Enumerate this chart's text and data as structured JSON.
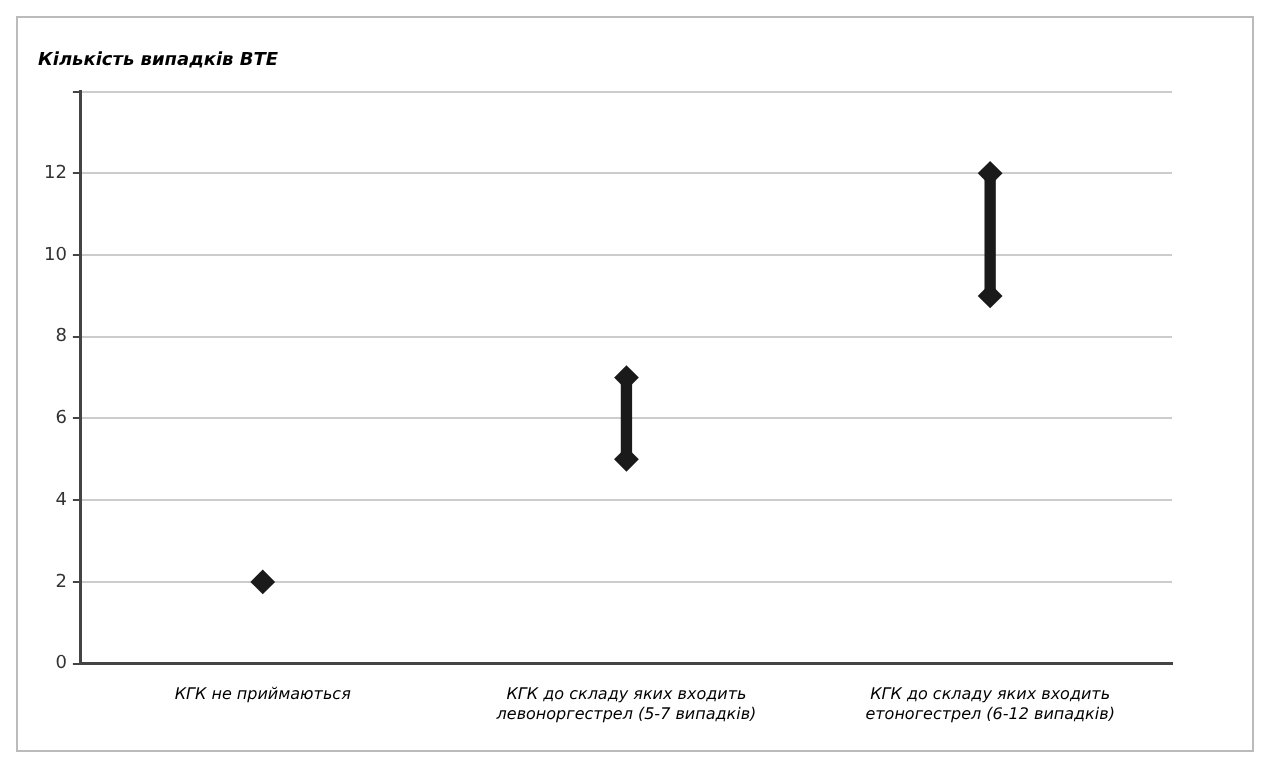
{
  "chart_data": {
    "type": "bar",
    "ylabel": "Кількість випадків ВТЕ",
    "categories": [
      "КГК не приймаються",
      "КГК до складу яких входить левоноргестрел (5-7 випадків)",
      "КГК до складу яких входить етоногестрел (6-12 випадків)"
    ],
    "series": [
      {
        "type": "bar",
        "color": "#1a1a1a",
        "base": [
          2,
          5,
          9
        ],
        "values": [
          0,
          2,
          3
        ]
      },
      {
        "type": "scatter",
        "color": "#1a1a1a",
        "x": [
          "КГК не приймаються",
          "КГК до складу яких входить левоноргестрел (5-7 випадків)",
          "КГК до складу яких входить етоногестрел (6-12 випадків)"
        ],
        "values": [
          2,
          5,
          9
        ]
      },
      {
        "type": "scatter",
        "color": "#1a1a1a",
        "x": [
          "КГК не приймаються",
          "КГК до складу яких входить левоноргестрел (5-7 випадків)",
          "КГК до складу яких входить етоногестрел (6-12 випадків)"
        ],
        "values": [
          null,
          7,
          12
        ]
      }
    ],
    "marker": "diamond",
    "ylim": [
      0,
      14
    ],
    "yticks": [
      0,
      2,
      4,
      6,
      8,
      10,
      12,
      {
        "value": 14,
        "label": null
      }
    ],
    "grid": "y",
    "legend": false
  }
}
